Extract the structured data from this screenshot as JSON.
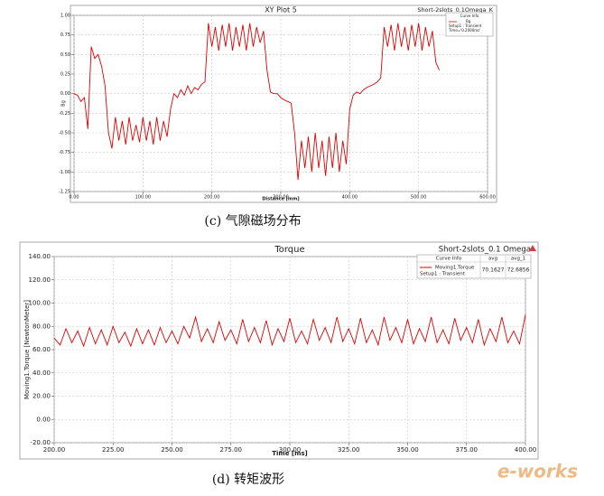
{
  "chart_data": [
    {
      "type": "line",
      "title": "XY Plot 5",
      "subtitle": "Short-2slots_0.1Omega_K",
      "x_label": "Distance [mm]",
      "y_label": "Bg",
      "x": [
        0,
        5,
        10,
        15,
        20,
        25,
        30,
        35,
        40,
        45,
        50,
        55,
        60,
        65,
        70,
        75,
        80,
        85,
        90,
        95,
        100,
        105,
        110,
        115,
        120,
        125,
        130,
        135,
        140,
        145,
        150,
        155,
        160,
        165,
        170,
        175,
        180,
        185,
        190,
        195,
        200,
        205,
        210,
        215,
        220,
        225,
        230,
        235,
        240,
        245,
        250,
        255,
        260,
        265,
        270,
        275,
        280,
        285,
        290,
        295,
        300,
        305,
        310,
        315,
        320,
        325,
        330,
        335,
        340,
        345,
        350,
        355,
        360,
        365,
        370,
        375,
        380,
        385,
        390,
        395,
        400,
        405,
        410,
        415,
        420,
        425,
        430,
        435,
        440,
        445,
        450,
        455,
        460,
        465,
        470,
        475,
        480,
        485,
        490,
        495,
        500,
        505,
        510,
        515,
        520,
        525,
        530
      ],
      "series": [
        {
          "name": "Bg",
          "color": "#e00000",
          "values": [
            0,
            -0.02,
            -0.1,
            -0.05,
            -0.45,
            0.6,
            0.45,
            0.5,
            0.35,
            0.1,
            -0.5,
            -0.7,
            -0.3,
            -0.6,
            -0.35,
            -0.65,
            -0.3,
            -0.6,
            -0.4,
            -0.62,
            -0.3,
            -0.6,
            -0.35,
            -0.65,
            -0.3,
            -0.6,
            -0.35,
            -0.55,
            -0.2,
            0,
            -0.05,
            0.05,
            -0.02,
            0.1,
            0,
            0.08,
            0.05,
            0.12,
            0.15,
            0.9,
            0.6,
            0.85,
            0.55,
            0.88,
            0.6,
            0.9,
            0.55,
            0.85,
            0.6,
            0.88,
            0.55,
            0.9,
            0.6,
            0.85,
            0.65,
            0.8,
            0.3,
            0.02,
            0,
            0,
            -0.05,
            -0.08,
            -0.1,
            -0.12,
            -0.5,
            -1.1,
            -0.6,
            -0.95,
            -0.55,
            -1,
            -0.5,
            -0.95,
            -0.6,
            -1.05,
            -0.55,
            -0.95,
            -0.5,
            -1,
            -0.6,
            -0.9,
            -0.2,
            -0.02,
            0.02,
            0,
            0.05,
            0.08,
            0.1,
            0.12,
            0.15,
            0.2,
            0.85,
            0.6,
            0.88,
            0.55,
            0.9,
            0.6,
            0.85,
            0.55,
            0.88,
            0.6,
            0.9,
            0.55,
            0.85,
            0.6,
            0.8,
            0.4,
            0.3
          ]
        }
      ],
      "legend_header": "Curve Info",
      "legend_lines": [
        "Setup1 : Transient",
        "Time='0.2000ms'"
      ],
      "xlim": [
        0,
        600
      ],
      "xticks": [
        {
          "value": 0,
          "label": "0.00"
        },
        {
          "value": 100,
          "label": "100.00"
        },
        {
          "value": 200,
          "label": "200.00"
        },
        {
          "value": 300,
          "label": "300.00"
        },
        {
          "value": 400,
          "label": "400.00"
        },
        {
          "value": 500,
          "label": "500.00"
        },
        {
          "value": 600,
          "label": "600.00"
        }
      ],
      "ylim": [
        -1.25,
        1
      ],
      "yticks": [
        {
          "value": -1.25,
          "label": "-1.25"
        },
        {
          "value": -1,
          "label": "-1.00"
        },
        {
          "value": -0.75,
          "label": "-0.75"
        },
        {
          "value": -0.5,
          "label": "-0.50"
        },
        {
          "value": -0.25,
          "label": "-0.25"
        },
        {
          "value": 0,
          "label": "0.00"
        },
        {
          "value": 0.25,
          "label": "0.25"
        },
        {
          "value": 0.5,
          "label": "0.50"
        },
        {
          "value": 0.75,
          "label": "0.75"
        },
        {
          "value": 1,
          "label": "1.00"
        }
      ],
      "grid": true,
      "caption": "(c)   气隙磁场分布"
    },
    {
      "type": "line",
      "title": "Torque",
      "subtitle": "Short-2slots_0.1 Omega",
      "x_label": "Time [ms]",
      "y_label": "Moving1.Torque [NewtonMeter]",
      "x": [
        200,
        202.5,
        205,
        207.5,
        210,
        212.5,
        215,
        217.5,
        220,
        222.5,
        225,
        227.5,
        230,
        232.5,
        235,
        237.5,
        240,
        242.5,
        245,
        247.5,
        250,
        252.5,
        255,
        257.5,
        260,
        262.5,
        265,
        267.5,
        270,
        272.5,
        275,
        277.5,
        280,
        282.5,
        285,
        287.5,
        290,
        292.5,
        295,
        297.5,
        300,
        302.5,
        305,
        307.5,
        310,
        312.5,
        315,
        317.5,
        320,
        322.5,
        325,
        327.5,
        330,
        332.5,
        335,
        337.5,
        340,
        342.5,
        345,
        347.5,
        350,
        352.5,
        355,
        357.5,
        360,
        362.5,
        365,
        367.5,
        370,
        372.5,
        375,
        377.5,
        380,
        382.5,
        385,
        387.5,
        390,
        392.5,
        395,
        397.5,
        400
      ],
      "series": [
        {
          "name": "Moving1.Torque",
          "color": "#e00000",
          "setup": "Setup1 : Transient",
          "stats": [
            "70.1627",
            "72.6856"
          ],
          "values": [
            70,
            64,
            78,
            66,
            76,
            63,
            79,
            65,
            77,
            64,
            80,
            66,
            75,
            63,
            78,
            65,
            77,
            64,
            79,
            66,
            76,
            65,
            80,
            70,
            88,
            67,
            78,
            66,
            84,
            68,
            77,
            65,
            86,
            67,
            79,
            66,
            85,
            64,
            78,
            67,
            87,
            66,
            76,
            65,
            86,
            68,
            79,
            66,
            88,
            67,
            78,
            65,
            87,
            66,
            77,
            64,
            88,
            68,
            79,
            66,
            86,
            65,
            78,
            67,
            88,
            66,
            77,
            65,
            87,
            68,
            79,
            66,
            86,
            64,
            78,
            67,
            88,
            66,
            76,
            65,
            90
          ]
        }
      ],
      "legend_header": "Curve Info",
      "stat_headers": [
        "avg",
        "avg_1"
      ],
      "xlim": [
        200,
        400
      ],
      "xticks": [
        {
          "value": 200,
          "label": "200.00"
        },
        {
          "value": 225,
          "label": "225.00"
        },
        {
          "value": 250,
          "label": "250.00"
        },
        {
          "value": 275,
          "label": "275.00"
        },
        {
          "value": 300,
          "label": "300.00"
        },
        {
          "value": 325,
          "label": "325.00"
        },
        {
          "value": 350,
          "label": "350.00"
        },
        {
          "value": 375,
          "label": "375.00"
        },
        {
          "value": 400,
          "label": "400.00"
        }
      ],
      "ylim": [
        -20,
        140
      ],
      "yticks": [
        {
          "value": -20,
          "label": "-20.00"
        },
        {
          "value": 0,
          "label": "0.00"
        },
        {
          "value": 20,
          "label": "20.00"
        },
        {
          "value": 40,
          "label": "40.00"
        },
        {
          "value": 60,
          "label": "60.00"
        },
        {
          "value": 80,
          "label": "80.00"
        },
        {
          "value": 100,
          "label": "100.00"
        },
        {
          "value": 120,
          "label": "120.00"
        },
        {
          "value": 140,
          "label": "140.00"
        }
      ],
      "grid": true,
      "caption": "(d)   转矩波形"
    }
  ],
  "watermark": "e-works"
}
